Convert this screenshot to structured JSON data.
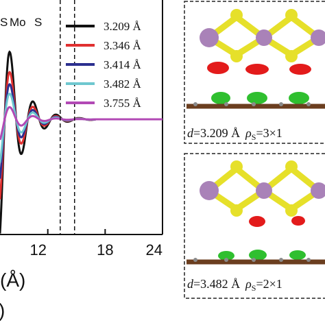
{
  "chart_data": {
    "type": "line",
    "x_ticks": [
      "12",
      "18",
      "24"
    ],
    "xlabel_visible": "(Å)",
    "xlabel_fragment": ")",
    "markers": [
      {
        "label": "S",
        "x": 7.7
      },
      {
        "label": "Mo",
        "x": 13.3
      },
      {
        "label": "S",
        "x": 14.8
      }
    ],
    "xlim": [
      7.0,
      24.0
    ],
    "ylim": [
      -1.0,
      1.0
    ],
    "series": [
      {
        "name": "3.209 Å",
        "color": "#111111",
        "amp": 1.0
      },
      {
        "name": "3.346 Å",
        "color": "#e03030",
        "amp": 0.7
      },
      {
        "name": "3.414 Å",
        "color": "#2b2f8f",
        "amp": 0.52
      },
      {
        "name": "3.482 Å",
        "color": "#6ec7cf",
        "amp": 0.38
      },
      {
        "name": "3.755 Å",
        "color": "#b249b5",
        "amp": 0.18
      }
    ],
    "grid": false,
    "legend": "top-right"
  },
  "panels": [
    {
      "d_label": "d",
      "d_value": "=3.209 Å",
      "rho_label": "ρ",
      "rho_sub": "S",
      "rho_value": "=3×1"
    },
    {
      "d_label": "d",
      "d_value": "=3.482 Å",
      "rho_label": "ρ",
      "rho_sub": "S",
      "rho_value": "=2×1"
    }
  ],
  "colors": {
    "sulfur": "#e6e02a",
    "molybdenum": "#a982b8",
    "charge_depletion": "#e31b1b",
    "charge_accumulation": "#2fbf2f",
    "graphene": "#6b3e1f"
  }
}
